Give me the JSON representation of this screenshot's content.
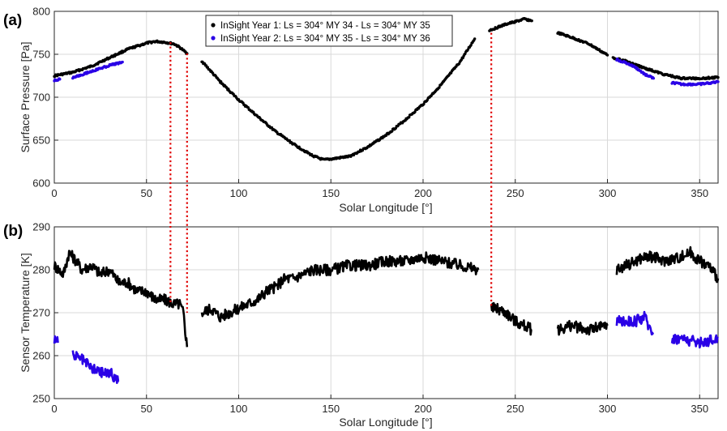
{
  "colors": {
    "year1": "#000000",
    "year2": "#2a00e6",
    "marker_line": "#e00000",
    "grid": "#d9d9d9"
  },
  "chart_data": [
    {
      "panel_label": "(a)",
      "type": "scatter",
      "xlabel": "Solar Longitude [°]",
      "ylabel": "Surface Pressure [Pa]",
      "xlim": [
        0,
        360
      ],
      "ylim": [
        600,
        800
      ],
      "xticks": [
        "0",
        "50",
        "100",
        "150",
        "200",
        "250",
        "300",
        "350"
      ],
      "yticks": [
        "600",
        "650",
        "700",
        "750",
        "800"
      ],
      "grid": true,
      "legend_position": "top-center",
      "series": [
        {
          "name": "InSight Year 1: Ls = 304° MY 34 -  Ls = 304° MY 35",
          "color": "#000000",
          "segments": [
            [
              [
                0,
                725
              ],
              [
                10,
                729
              ],
              [
                20,
                736
              ],
              [
                30,
                746
              ],
              [
                40,
                756
              ],
              [
                50,
                763
              ],
              [
                55,
                765
              ],
              [
                60,
                764
              ],
              [
                65,
                762
              ],
              [
                68,
                758
              ],
              [
                72,
                751
              ]
            ],
            [
              [
                80,
                742
              ],
              [
                90,
                718
              ],
              [
                100,
                697
              ],
              [
                110,
                678
              ],
              [
                120,
                660
              ],
              [
                130,
                645
              ],
              [
                140,
                632
              ],
              [
                146,
                627
              ],
              [
                150,
                628
              ],
              [
                160,
                631
              ],
              [
                170,
                642
              ],
              [
                180,
                656
              ],
              [
                190,
                673
              ],
              [
                200,
                692
              ],
              [
                210,
                715
              ],
              [
                220,
                741
              ],
              [
                228,
                768
              ]
            ],
            [
              [
                236,
                778
              ],
              [
                240,
                781
              ],
              [
                245,
                785
              ],
              [
                250,
                788
              ],
              [
                255,
                791
              ],
              [
                259,
                789
              ]
            ],
            [
              [
                273,
                775
              ],
              [
                280,
                770
              ],
              [
                290,
                762
              ],
              [
                300,
                749
              ]
            ],
            [
              [
                303,
                746
              ],
              [
                310,
                742
              ],
              [
                320,
                734
              ],
              [
                330,
                727
              ],
              [
                340,
                722
              ],
              [
                350,
                722
              ],
              [
                360,
                723
              ]
            ]
          ]
        },
        {
          "name": "InSight Year 2: Ls = 304° MY 35 -  Ls = 304° MY 36",
          "color": "#2a00e6",
          "segments": [
            [
              [
                0,
                720
              ],
              [
                3,
                721
              ]
            ],
            [
              [
                10,
                723
              ],
              [
                20,
                730
              ],
              [
                30,
                737
              ],
              [
                37,
                741
              ]
            ],
            [
              [
                305,
                744
              ],
              [
                310,
                740
              ],
              [
                315,
                735
              ],
              [
                320,
                727
              ],
              [
                325,
                722
              ]
            ],
            [
              [
                335,
                717
              ],
              [
                340,
                715
              ],
              [
                350,
                715
              ],
              [
                360,
                718
              ]
            ]
          ]
        }
      ]
    },
    {
      "panel_label": "(b)",
      "type": "line",
      "xlabel": "Solar Longitude [°]",
      "ylabel": "Sensor Temperature [K]",
      "xlim": [
        0,
        360
      ],
      "ylim": [
        250,
        290
      ],
      "xticks": [
        "0",
        "50",
        "100",
        "150",
        "200",
        "250",
        "300",
        "350"
      ],
      "yticks": [
        "250",
        "260",
        "270",
        "280",
        "290"
      ],
      "grid": true,
      "series": [
        {
          "name": "InSight Year 1",
          "color": "#000000",
          "segments": [
            [
              [
                0,
                281
              ],
              [
                5,
                279
              ],
              [
                8,
                284
              ],
              [
                12,
                282
              ],
              [
                15,
                280
              ],
              [
                20,
                281
              ],
              [
                25,
                279
              ],
              [
                30,
                280
              ],
              [
                35,
                277
              ],
              [
                40,
                277
              ],
              [
                45,
                275
              ],
              [
                50,
                275
              ],
              [
                55,
                273
              ],
              [
                60,
                273
              ],
              [
                65,
                272
              ],
              [
                68,
                272
              ],
              [
                70,
                270
              ],
              [
                72,
                262
              ]
            ],
            [
              [
                80,
                270
              ],
              [
                85,
                271
              ],
              [
                90,
                269
              ],
              [
                95,
                270
              ],
              [
                100,
                271
              ],
              [
                105,
                272
              ],
              [
                110,
                273
              ],
              [
                115,
                275
              ],
              [
                120,
                276
              ],
              [
                125,
                278
              ],
              [
                130,
                278
              ],
              [
                140,
                280
              ],
              [
                150,
                280
              ],
              [
                160,
                281
              ],
              [
                170,
                281
              ],
              [
                180,
                282
              ],
              [
                190,
                282
              ],
              [
                200,
                283
              ],
              [
                210,
                282
              ],
              [
                220,
                281
              ],
              [
                230,
                280
              ]
            ],
            [
              [
                237,
                271
              ],
              [
                240,
                271
              ],
              [
                245,
                270
              ],
              [
                250,
                268
              ],
              [
                255,
                267
              ],
              [
                259,
                266
              ]
            ],
            [
              [
                273,
                266
              ],
              [
                280,
                267
              ],
              [
                290,
                266
              ],
              [
                300,
                267
              ]
            ],
            [
              [
                305,
                280
              ],
              [
                310,
                281
              ],
              [
                315,
                282
              ],
              [
                320,
                283
              ],
              [
                325,
                283
              ],
              [
                330,
                282
              ],
              [
                340,
                283
              ],
              [
                345,
                284
              ],
              [
                350,
                282
              ],
              [
                355,
                281
              ],
              [
                360,
                278
              ]
            ]
          ]
        },
        {
          "name": "InSight Year 2",
          "color": "#2a00e6",
          "segments": [
            [
              [
                0,
                264
              ],
              [
                2,
                263
              ]
            ],
            [
              [
                10,
                260
              ],
              [
                15,
                259
              ],
              [
                20,
                257
              ],
              [
                25,
                256
              ],
              [
                30,
                256
              ],
              [
                35,
                254
              ]
            ],
            [
              [
                305,
                268
              ],
              [
                310,
                268
              ],
              [
                315,
                268
              ],
              [
                320,
                269
              ],
              [
                325,
                265
              ]
            ],
            [
              [
                335,
                264
              ],
              [
                340,
                264
              ],
              [
                350,
                263
              ],
              [
                360,
                264
              ]
            ]
          ]
        }
      ]
    }
  ],
  "vertical_markers": {
    "x": [
      63,
      72,
      237
    ]
  }
}
